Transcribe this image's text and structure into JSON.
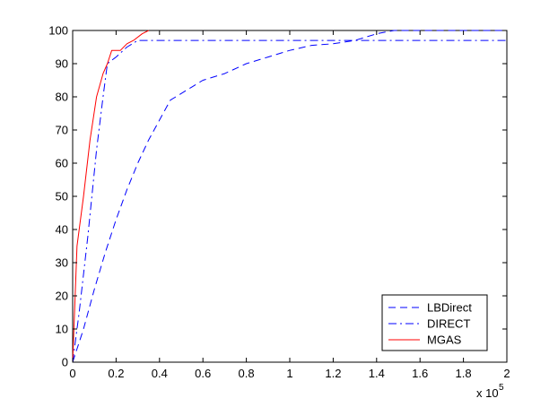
{
  "chart_data": {
    "type": "line",
    "xlim": [
      0,
      200000
    ],
    "ylim": [
      0,
      100
    ],
    "x_ticks": [
      0,
      20000,
      40000,
      60000,
      80000,
      100000,
      120000,
      140000,
      160000,
      180000,
      200000
    ],
    "x_tick_labels": [
      "0",
      "0.2",
      "0.4",
      "0.6",
      "0.8",
      "1",
      "1.2",
      "1.4",
      "1.6",
      "1.8",
      "2"
    ],
    "x_exponent_label": {
      "base": "x 10",
      "exponent": "5"
    },
    "y_ticks": [
      0,
      10,
      20,
      30,
      40,
      50,
      60,
      70,
      80,
      90,
      100
    ],
    "y_tick_labels": [
      "0",
      "10",
      "20",
      "30",
      "40",
      "50",
      "60",
      "70",
      "80",
      "90",
      "100"
    ],
    "grid": false,
    "legend_position": "bottom-right",
    "series": [
      {
        "name": "LBDirect",
        "color": "#0000ff",
        "style": "dashed",
        "points": [
          [
            0,
            0
          ],
          [
            5000,
            10
          ],
          [
            10000,
            22
          ],
          [
            15000,
            33
          ],
          [
            20000,
            43
          ],
          [
            25000,
            52
          ],
          [
            30000,
            60
          ],
          [
            35000,
            67
          ],
          [
            40000,
            73
          ],
          [
            45000,
            79
          ],
          [
            50000,
            81
          ],
          [
            55000,
            83
          ],
          [
            60000,
            85
          ],
          [
            70000,
            87
          ],
          [
            80000,
            90
          ],
          [
            90000,
            92
          ],
          [
            100000,
            94
          ],
          [
            110000,
            95.5
          ],
          [
            120000,
            96
          ],
          [
            130000,
            97
          ],
          [
            140000,
            99
          ],
          [
            148000,
            100
          ],
          [
            200000,
            100
          ]
        ]
      },
      {
        "name": "DIRECT",
        "color": "#0000ff",
        "style": "dashdot",
        "points": [
          [
            0,
            0
          ],
          [
            3000,
            15
          ],
          [
            7000,
            38
          ],
          [
            11000,
            64
          ],
          [
            14000,
            80
          ],
          [
            16000,
            90
          ],
          [
            20000,
            92
          ],
          [
            25000,
            95
          ],
          [
            30000,
            97
          ],
          [
            200000,
            97
          ]
        ]
      },
      {
        "name": "MGAS",
        "color": "#ff0000",
        "style": "solid",
        "points": [
          [
            0,
            0
          ],
          [
            2000,
            35
          ],
          [
            5000,
            50
          ],
          [
            8000,
            67
          ],
          [
            11000,
            80
          ],
          [
            14000,
            87
          ],
          [
            16000,
            90
          ],
          [
            18000,
            94
          ],
          [
            22000,
            94
          ],
          [
            25000,
            96
          ],
          [
            28000,
            97
          ],
          [
            32000,
            99
          ],
          [
            35000,
            100
          ]
        ]
      }
    ]
  }
}
